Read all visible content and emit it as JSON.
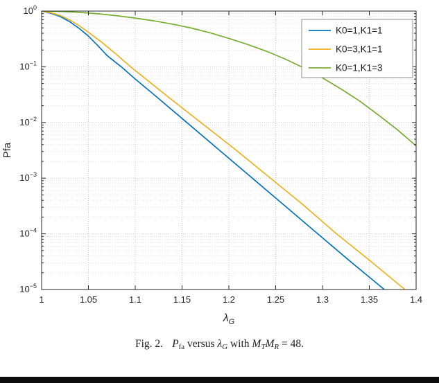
{
  "chart_data": {
    "type": "line",
    "title": "",
    "xlabel_base": "λ",
    "xlabel_sub": "G",
    "ylabel": "Pfa",
    "xlim": [
      1,
      1.4
    ],
    "ylim_log10": [
      -5,
      0
    ],
    "y_scale": "log",
    "grid": true,
    "legend_position": "northeast",
    "x_ticks": [
      1,
      1.05,
      1.1,
      1.15,
      1.2,
      1.25,
      1.3,
      1.35,
      1.4
    ],
    "x_tick_labels": [
      "1",
      "1.05",
      "1.1",
      "1.15",
      "1.2",
      "1.25",
      "1.3",
      "1.35",
      "1.4"
    ],
    "y_exponents": [
      0,
      -1,
      -2,
      -3,
      -4,
      -5
    ],
    "series": [
      {
        "name": "K0=1,K1=1",
        "color": "#0072BD",
        "x": [
          1.0,
          1.01,
          1.02,
          1.03,
          1.04,
          1.05,
          1.06,
          1.07,
          1.085,
          1.1,
          1.12,
          1.155,
          1.19,
          1.225,
          1.26,
          1.295,
          1.33,
          1.366
        ],
        "log10y": [
          0,
          -0.04,
          -0.1,
          -0.19,
          -0.31,
          -0.45,
          -0.62,
          -0.8,
          -1.0,
          -1.22,
          -1.5,
          -2.0,
          -2.5,
          -3.0,
          -3.5,
          -4.0,
          -4.5,
          -5.0
        ]
      },
      {
        "name": "K0=3,K1=1",
        "color": "#EDB120",
        "x": [
          1.0,
          1.01,
          1.02,
          1.03,
          1.04,
          1.05,
          1.065,
          1.08,
          1.095,
          1.115,
          1.135,
          1.17,
          1.205,
          1.24,
          1.278,
          1.315,
          1.352,
          1.388
        ],
        "log10y": [
          0,
          -0.03,
          -0.08,
          -0.16,
          -0.26,
          -0.38,
          -0.57,
          -0.78,
          -1.0,
          -1.27,
          -1.54,
          -2.0,
          -2.46,
          -2.94,
          -3.46,
          -4.0,
          -4.5,
          -5.0
        ]
      },
      {
        "name": "K0=1,K1=3",
        "color": "#77AC30",
        "x": [
          1.0,
          1.02,
          1.04,
          1.06,
          1.08,
          1.1,
          1.12,
          1.14,
          1.16,
          1.18,
          1.2,
          1.22,
          1.24,
          1.26,
          1.28,
          1.3,
          1.32,
          1.34,
          1.36,
          1.38,
          1.4
        ],
        "log10y": [
          0,
          -0.006,
          -0.022,
          -0.048,
          -0.082,
          -0.125,
          -0.175,
          -0.235,
          -0.305,
          -0.39,
          -0.49,
          -0.6,
          -0.72,
          -0.86,
          -1.02,
          -1.2,
          -1.4,
          -1.62,
          -1.87,
          -2.13,
          -2.42
        ]
      }
    ],
    "colors": {
      "grid_major": "#c9c9c9",
      "grid_minor": "#e3e3e3",
      "axis": "#262626",
      "legend_border": "#8c8c8c"
    }
  },
  "caption": {
    "fig_label": "Fig. 2.",
    "p": "P",
    "p_sub": "fa",
    "versus": " versus ",
    "lambda": "λ",
    "lambda_sub": "G",
    "with_text": " with ",
    "m_t": "M",
    "m_t_sub": "T",
    "m_r": "M",
    "m_r_sub": "R",
    "equals": " = 48."
  }
}
